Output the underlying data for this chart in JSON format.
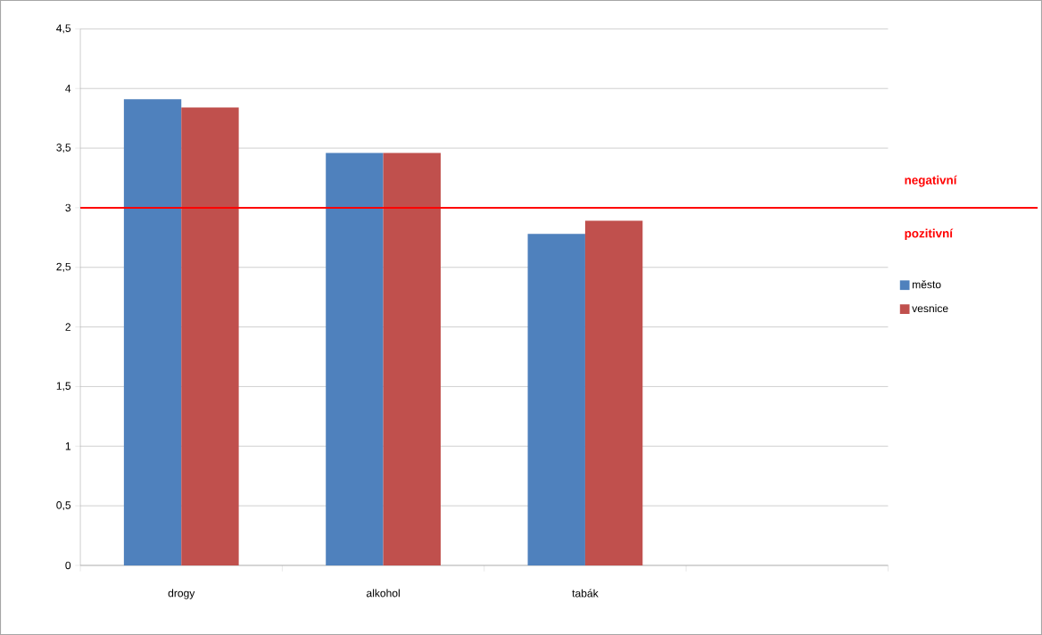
{
  "chart_data": {
    "type": "bar",
    "categories": [
      "drogy",
      "alkohol",
      "tabák",
      null
    ],
    "series": [
      {
        "name": "město",
        "color": "#4f81bd",
        "values": [
          3.91,
          3.46,
          2.78,
          null
        ]
      },
      {
        "name": "vesnice",
        "color": "#c0504d",
        "values": [
          3.84,
          3.46,
          2.89,
          null
        ]
      }
    ],
    "ylim": [
      0,
      4.5
    ],
    "yticks": [
      0,
      {
        "value": 0.5,
        "label": "0,5"
      },
      1,
      {
        "value": 1.5,
        "label": "1,5"
      },
      2,
      {
        "value": 2.5,
        "label": "2,5"
      },
      3,
      {
        "value": 3.5,
        "label": "3,5"
      },
      4,
      {
        "value": 4.5,
        "label": "4,5"
      }
    ],
    "grid": "y",
    "legend": "right",
    "ref_lines": [
      {
        "axis": "y",
        "value": 3,
        "color": "#ff0000"
      }
    ],
    "annotations": [
      "**negativní**",
      "**pozitivní**"
    ]
  }
}
